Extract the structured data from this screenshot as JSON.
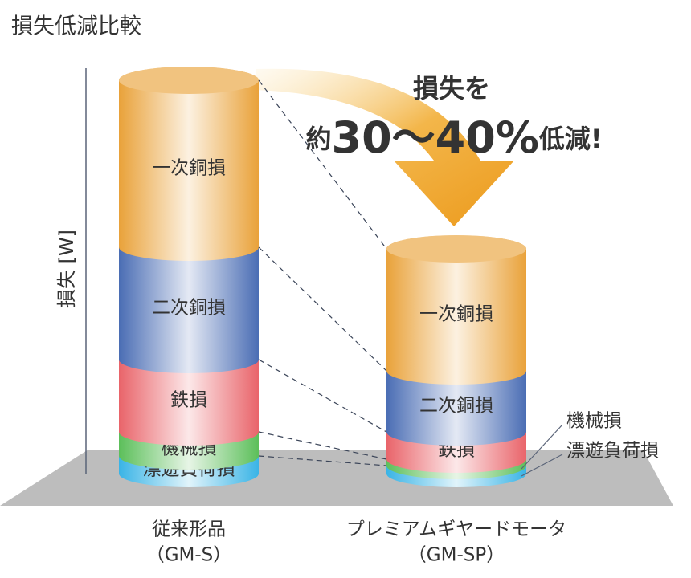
{
  "chart_data": {
    "type": "stacked_cylinder",
    "title": "損失低減比較",
    "y_label": "損失 [W]",
    "categories": [
      "従来形品",
      "プレミアムギヤードモータ"
    ],
    "category_codes": [
      "（GM-S）",
      "（GM-SP）"
    ],
    "ylim": [
      0,
      505
    ],
    "series": [
      {
        "name": "漂遊負荷損",
        "color": "#3ab4e6",
        "values": [
          22,
          10
        ]
      },
      {
        "name": "機械損",
        "color": "#5cbf5a",
        "values": [
          30,
          8
        ]
      },
      {
        "name": "鉄損",
        "color": "#e9646a",
        "values": [
          90,
          34
        ]
      },
      {
        "name": "二次銅損",
        "color": "#4a6db4",
        "values": [
          140,
          76
        ]
      },
      {
        "name": "一次銅損",
        "color": "#e9a23a",
        "values": [
          208,
          152
        ]
      }
    ],
    "annotation": {
      "line1": "損失を",
      "prefix": "約",
      "emphasis": "30〜40%",
      "suffix": "低減!"
    }
  }
}
